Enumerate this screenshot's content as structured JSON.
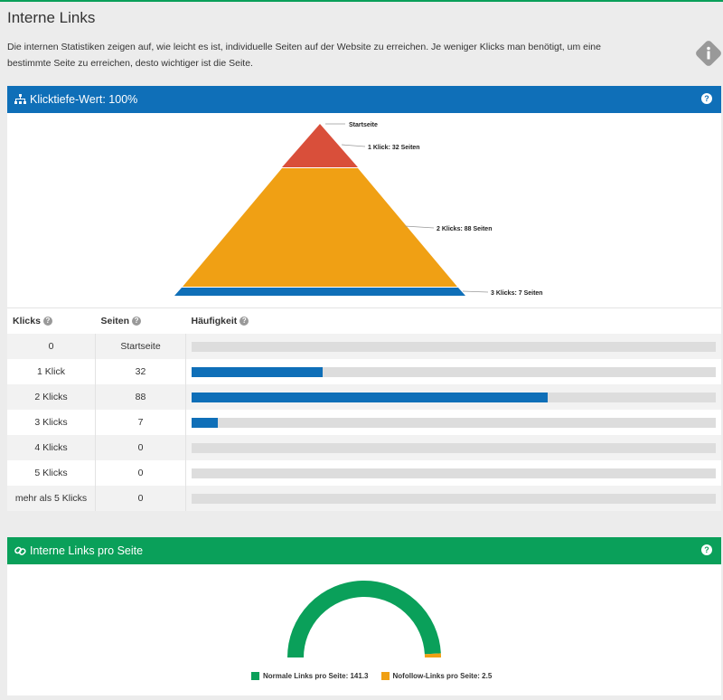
{
  "page": {
    "title": "Interne Links",
    "description": "Die internen Statistiken zeigen auf, wie leicht es ist, individuelle Seiten auf der Website zu erreichen. Je weniger Klicks man benötigt, um eine bestimmte Seite zu erreichen, desto wichtiger ist die Seite.",
    "info_icon": "info-icon"
  },
  "depth_panel": {
    "title": "Klicktiefe-Wert: 100%",
    "icon": "sitemap-icon",
    "help": "?",
    "pyramid_labels": [
      "Startseite",
      "1 Klick: 32 Seiten",
      "2 Klicks: 88 Seiten",
      "3 Klicks: 7 Seiten"
    ],
    "colors": {
      "level1": "#d94f3a",
      "level2": "#f0a014",
      "level3": "#0f6fb8"
    },
    "table": {
      "headers": [
        "Klicks",
        "Seiten",
        "Häufigkeit"
      ],
      "rows": [
        {
          "klicks": "0",
          "seiten": "Startseite",
          "freq": 0
        },
        {
          "klicks": "1 Klick",
          "seiten": "32",
          "freq": 0.25
        },
        {
          "klicks": "2 Klicks",
          "seiten": "88",
          "freq": 0.68
        },
        {
          "klicks": "3 Klicks",
          "seiten": "7",
          "freq": 0.05
        },
        {
          "klicks": "4 Klicks",
          "seiten": "0",
          "freq": 0
        },
        {
          "klicks": "5 Klicks",
          "seiten": "0",
          "freq": 0
        },
        {
          "klicks": "mehr als 5 Klicks",
          "seiten": "0",
          "freq": 0
        }
      ]
    }
  },
  "links_panel": {
    "title": "Interne Links pro Seite",
    "icon": "link-icon",
    "help": "?",
    "legend": [
      {
        "label": "Normale Links pro Seite: 141.3",
        "color": "#0aa05a"
      },
      {
        "label": "Nofollow-Links pro Seite: 2.5",
        "color": "#f0a014"
      }
    ],
    "gauge": {
      "normal": 141.3,
      "nofollow": 2.5
    }
  }
}
